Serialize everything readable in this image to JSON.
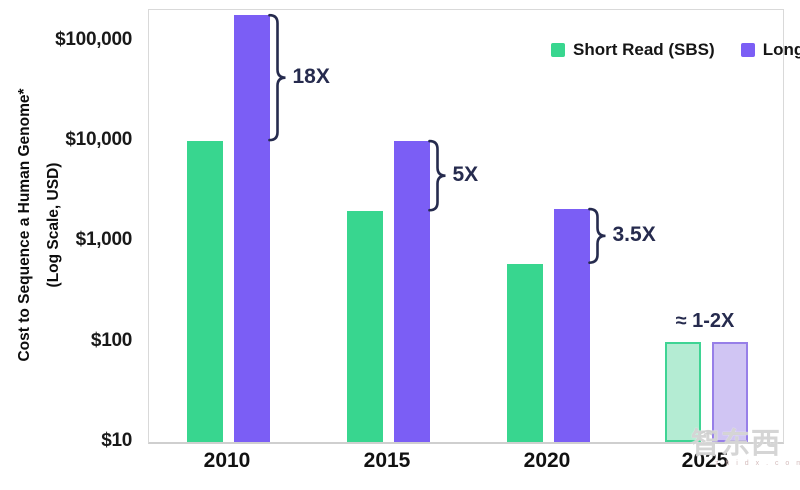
{
  "chart_data": {
    "type": "bar",
    "title": "",
    "ylabel_line1": "Cost to Sequence a Human Genome*",
    "ylabel_line2": "(Log Scale, USD)",
    "y_axis": {
      "scale": "log",
      "range": [
        10,
        200000
      ],
      "ticks": [
        {
          "label": "$100,000",
          "value": 100000
        },
        {
          "label": "$10,000",
          "value": 10000
        },
        {
          "label": "$1,000",
          "value": 1000
        },
        {
          "label": "$100",
          "value": 100
        },
        {
          "label": "$10",
          "value": 10
        }
      ]
    },
    "categories": [
      "2010",
      "2015",
      "2020",
      "2025"
    ],
    "series": [
      {
        "name": "Short Read (SBS)",
        "color": "#38d68f",
        "estimated_fill": "#b4ecd3",
        "estimated_border": "#3fd494",
        "values": [
          10000,
          2000,
          600,
          100
        ]
      },
      {
        "name": "Long Read (SMRT)",
        "color": "#7b5ef5",
        "estimated_fill": "#d0c5f3",
        "estimated_border": "#977fe8",
        "values": [
          180000,
          10000,
          2100,
          100
        ]
      }
    ],
    "estimated_categories": [
      "2025"
    ],
    "annotations": [
      {
        "category": "2010",
        "label": "18X",
        "type": "bracket"
      },
      {
        "category": "2015",
        "label": "5X",
        "type": "bracket"
      },
      {
        "category": "2020",
        "label": "3.5X",
        "type": "bracket"
      },
      {
        "category": "2025",
        "label": "≈ 1-2X",
        "type": "text"
      }
    ],
    "legend_position": "top-right",
    "grid": false,
    "annotation_color": "#262b4e"
  },
  "watermark": {
    "text": "智东西",
    "subtext": "z h i d x . c o m"
  }
}
